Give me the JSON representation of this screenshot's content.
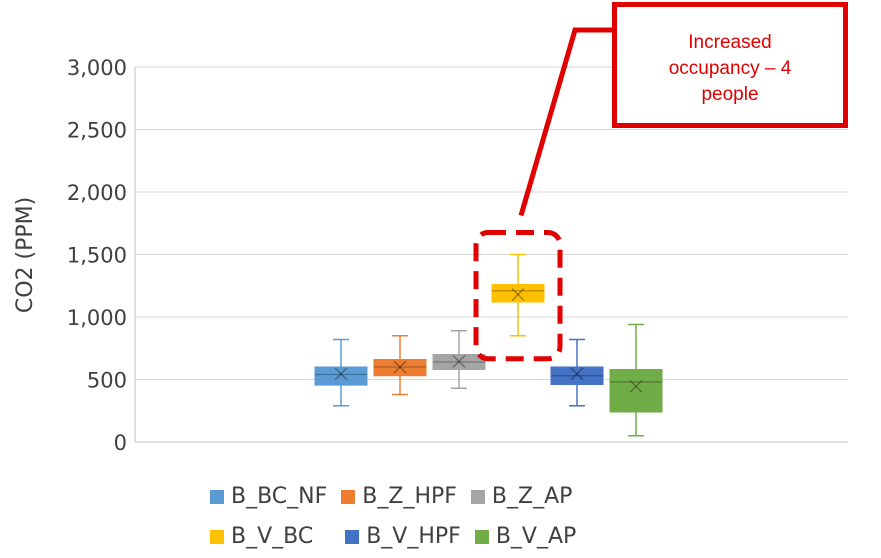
{
  "chart_data": {
    "type": "box",
    "ylabel": "CO2 (PPM)",
    "ylim": [
      0,
      3000
    ],
    "yticks": [
      0,
      500,
      1000,
      1500,
      2000,
      2500,
      3000
    ],
    "ytick_labels": [
      "0",
      "500",
      "1,000",
      "1,500",
      "2,000",
      "2,500",
      "3,000"
    ],
    "grid": true,
    "legend_position": "bottom",
    "series": [
      {
        "name": "B_BC_NF",
        "color": "#5b9bd5",
        "min": 290,
        "q1": 455,
        "median": 540,
        "q3": 600,
        "max": 820,
        "mean": 545
      },
      {
        "name": "B_Z_HPF",
        "color": "#ed7d31",
        "min": 380,
        "q1": 530,
        "median": 600,
        "q3": 660,
        "max": 850,
        "mean": 600
      },
      {
        "name": "B_Z_AP",
        "color": "#a5a5a5",
        "min": 430,
        "q1": 580,
        "median": 640,
        "q3": 700,
        "max": 890,
        "mean": 645
      },
      {
        "name": "B_V_BC",
        "color": "#ffc000",
        "min": 850,
        "q1": 1120,
        "median": 1210,
        "q3": 1260,
        "max": 1500,
        "mean": 1180
      },
      {
        "name": "B_V_HPF",
        "color": "#4472c4",
        "min": 290,
        "q1": 460,
        "median": 530,
        "q3": 600,
        "max": 820,
        "mean": 545
      },
      {
        "name": "B_V_AP",
        "color": "#70ad47",
        "min": 50,
        "q1": 240,
        "median": 480,
        "q3": 580,
        "max": 940,
        "mean": 445
      }
    ],
    "annotation": {
      "text_lines": [
        "Increased",
        "occupancy – 4",
        "people"
      ],
      "color": "#e00000",
      "highlights": "B_V_BC"
    }
  }
}
